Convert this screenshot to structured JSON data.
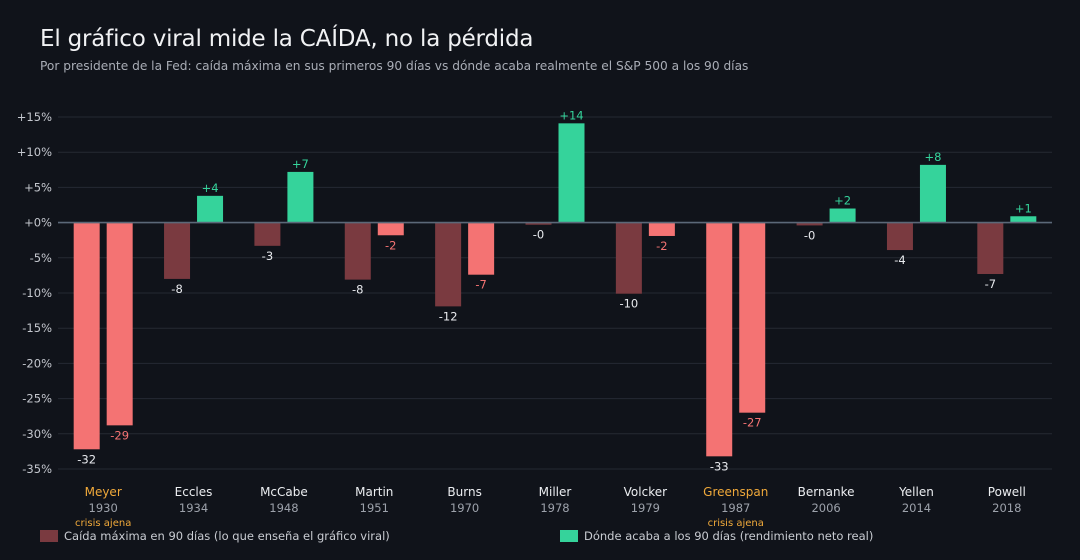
{
  "title": "El gráfico viral mide la CAÍDA, no la pérdida",
  "subtitle": "Por presidente de la Fed: caída máxima en sus primeros 90 días vs dónde acaba realmente el S&P 500 a los 90 días",
  "colors": {
    "background": "#10131a",
    "drawdown_normal": "#7a3a40",
    "drawdown_crisis": "#f47373",
    "end_positive": "#35d39b",
    "end_negative_normal": "#f47373",
    "highlight_name": "#f0a93a",
    "grid": "#252a33",
    "zero_line": "#5b6878"
  },
  "legend": {
    "drawdown_label": "Caída máxima en 90 días (lo que enseña el gráfico viral)",
    "end_label": "Dónde acaba a los 90 días (rendimiento neto real)"
  },
  "chart_data": {
    "type": "bar",
    "ylim": [
      -35,
      15
    ],
    "yticks": [
      15,
      10,
      5,
      0,
      -5,
      -10,
      -15,
      -20,
      -25,
      -30,
      -35
    ],
    "ytick_labels": [
      "+15%",
      "+10%",
      "+5%",
      "+0%",
      "-5%",
      "-10%",
      "-15%",
      "-20%",
      "-25%",
      "-30%",
      "-35%"
    ],
    "grid": true,
    "categories": [
      {
        "name": "Meyer",
        "year": "1930",
        "note": "crisis ajena",
        "highlight": true
      },
      {
        "name": "Eccles",
        "year": "1934",
        "note": "",
        "highlight": false
      },
      {
        "name": "McCabe",
        "year": "1948",
        "note": "",
        "highlight": false
      },
      {
        "name": "Martin",
        "year": "1951",
        "note": "",
        "highlight": false
      },
      {
        "name": "Burns",
        "year": "1970",
        "note": "",
        "highlight": false
      },
      {
        "name": "Miller",
        "year": "1978",
        "note": "",
        "highlight": false
      },
      {
        "name": "Volcker",
        "year": "1979",
        "note": "",
        "highlight": false
      },
      {
        "name": "Greenspan",
        "year": "1987",
        "note": "crisis ajena",
        "highlight": true
      },
      {
        "name": "Bernanke",
        "year": "2006",
        "note": "",
        "highlight": false
      },
      {
        "name": "Yellen",
        "year": "2014",
        "note": "",
        "highlight": false
      },
      {
        "name": "Powell",
        "year": "2018",
        "note": "",
        "highlight": false
      }
    ],
    "series": [
      {
        "name": "Caída máxima en 90 días (lo que enseña el gráfico viral)",
        "values": [
          -32.2,
          -8.0,
          -3.3,
          -8.1,
          -11.9,
          -0.3,
          -10.1,
          -33.2,
          -0.4,
          -3.9,
          -7.3
        ],
        "labels": [
          "-32",
          "-8",
          "-3",
          "-8",
          "-12",
          "-0",
          "-10",
          "-33",
          "-0",
          "-4",
          "-7"
        ]
      },
      {
        "name": "Dónde acaba a los 90 días (rendimiento neto real)",
        "values": [
          -28.8,
          3.8,
          7.2,
          -1.8,
          -7.4,
          14.1,
          -1.9,
          -27.0,
          2.0,
          8.2,
          0.9
        ],
        "labels": [
          "-29",
          "+4",
          "+7",
          "-2",
          "-7",
          "+14",
          "-2",
          "-27",
          "+2",
          "+8",
          "+1"
        ]
      }
    ]
  }
}
